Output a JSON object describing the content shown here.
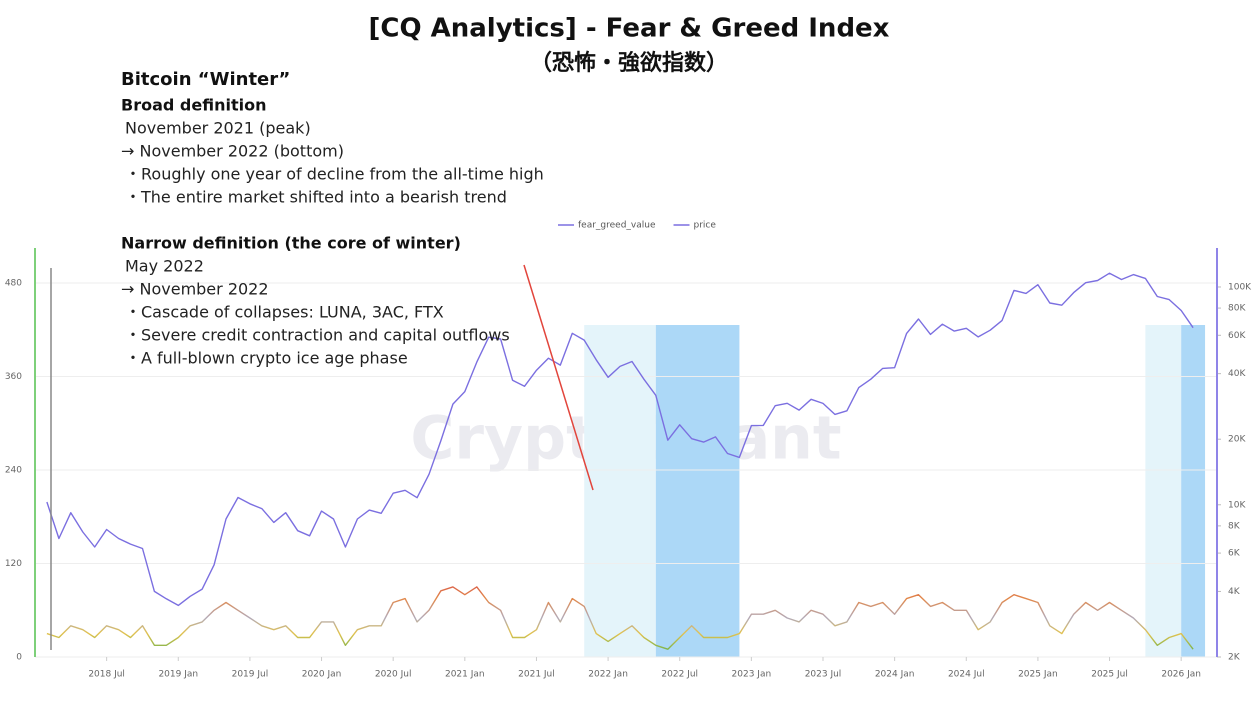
{
  "chart_data": {
    "type": "line",
    "title": "[CQ Analytics] - Fear & Greed Index",
    "subtitle": "（恐怖・強欲指数）",
    "watermark": "CryptoQuant",
    "note": {
      "title": "Bitcoin “Winter”",
      "sections": [
        {
          "heading": "Broad definition",
          "lines": [
            "November 2021 (peak)",
            "→ November 2022 (bottom)",
            "・Roughly one year of decline from the all-time high",
            "・The entire market shifted into a bearish trend"
          ]
        },
        {
          "heading": "Narrow definition (the core of winter)",
          "lines": [
            "May 2022",
            "→ November 2022",
            "・Cascade of collapses: LUNA, 3AC, FTX",
            "・Severe credit contraction and capital outflows",
            "・A full-blown crypto ice age phase"
          ]
        }
      ]
    },
    "legend_position": "top",
    "grid": true,
    "x": [
      "2018-02",
      "2018-03",
      "2018-04",
      "2018-05",
      "2018-06",
      "2018-07",
      "2018-08",
      "2018-09",
      "2018-10",
      "2018-11",
      "2018-12",
      "2019-01",
      "2019-02",
      "2019-03",
      "2019-04",
      "2019-05",
      "2019-06",
      "2019-07",
      "2019-08",
      "2019-09",
      "2019-10",
      "2019-11",
      "2019-12",
      "2020-01",
      "2020-02",
      "2020-03",
      "2020-04",
      "2020-05",
      "2020-06",
      "2020-07",
      "2020-08",
      "2020-09",
      "2020-10",
      "2020-11",
      "2020-12",
      "2021-01",
      "2021-02",
      "2021-03",
      "2021-04",
      "2021-05",
      "2021-06",
      "2021-07",
      "2021-08",
      "2021-09",
      "2021-10",
      "2021-11",
      "2021-12",
      "2022-01",
      "2022-02",
      "2022-03",
      "2022-04",
      "2022-05",
      "2022-06",
      "2022-07",
      "2022-08",
      "2022-09",
      "2022-10",
      "2022-11",
      "2022-12",
      "2023-01",
      "2023-02",
      "2023-03",
      "2023-04",
      "2023-05",
      "2023-06",
      "2023-07",
      "2023-08",
      "2023-09",
      "2023-10",
      "2023-11",
      "2023-12",
      "2024-01",
      "2024-02",
      "2024-03",
      "2024-04",
      "2024-05",
      "2024-06",
      "2024-07",
      "2024-08",
      "2024-09",
      "2024-10",
      "2024-11",
      "2024-12",
      "2025-01",
      "2025-02",
      "2025-03",
      "2025-04",
      "2025-05",
      "2025-06",
      "2025-07",
      "2025-08",
      "2025-09",
      "2025-10",
      "2025-11",
      "2025-12",
      "2026-01",
      "2026-02"
    ],
    "series": [
      {
        "name": "fear_greed_value",
        "color": "#7b6fe0",
        "axis": "y",
        "values": [
          30,
          25,
          40,
          35,
          25,
          40,
          35,
          25,
          40,
          15,
          15,
          25,
          40,
          45,
          60,
          70,
          60,
          50,
          40,
          35,
          40,
          25,
          25,
          45,
          45,
          15,
          35,
          40,
          40,
          70,
          75,
          45,
          60,
          85,
          90,
          80,
          90,
          70,
          60,
          25,
          25,
          35,
          70,
          45,
          75,
          65,
          30,
          20,
          30,
          40,
          25,
          15,
          10,
          25,
          40,
          25,
          25,
          25,
          30,
          55,
          55,
          60,
          50,
          45,
          60,
          55,
          40,
          45,
          70,
          65,
          70,
          55,
          75,
          80,
          65,
          70,
          60,
          60,
          35,
          45,
          70,
          80,
          75,
          70,
          40,
          30,
          55,
          70,
          60,
          70,
          60,
          50,
          35,
          15,
          25,
          30,
          10
        ]
      },
      {
        "name": "price",
        "color": "#7b6fe0",
        "axis": "y2",
        "values": [
          10300,
          7000,
          9200,
          7500,
          6400,
          7700,
          7000,
          6600,
          6300,
          4000,
          3700,
          3450,
          3800,
          4100,
          5300,
          8600,
          10800,
          10100,
          9600,
          8300,
          9200,
          7600,
          7200,
          9350,
          8600,
          6400,
          8600,
          9450,
          9140,
          11300,
          11650,
          10780,
          13800,
          19700,
          29000,
          33100,
          45200,
          58800,
          57700,
          37300,
          35000,
          41500,
          47100,
          43800,
          61300,
          57000,
          46300,
          38500,
          43200,
          45500,
          37700,
          31800,
          19800,
          23300,
          20100,
          19400,
          20500,
          17200,
          16500,
          23100,
          23150,
          28500,
          29250,
          27200,
          30500,
          29200,
          26000,
          27000,
          34500,
          37700,
          42300,
          42600,
          61200,
          71300,
          60600,
          67500,
          62700,
          64600,
          59000,
          63300,
          70200,
          96400,
          93400,
          102400,
          84400,
          82500,
          94200,
          104600,
          107100,
          115700,
          108200,
          114000,
          109500,
          90400,
          87500,
          78000,
          65000
        ]
      }
    ],
    "highlights": [
      {
        "start": "2021-11",
        "end": "2022-05",
        "color": "#e4f4fa"
      },
      {
        "start": "2022-05",
        "end": "2022-12",
        "color": "#acd8f7"
      },
      {
        "start": "2025-10",
        "end": "2026-01",
        "color": "#e4f4fa"
      },
      {
        "start": "2026-01",
        "end": "2026-03",
        "color": "#acd8f7"
      }
    ],
    "xlim": [
      "2018-01",
      "2026-04"
    ],
    "xticks": [
      {
        "value": "2018-07",
        "label": "2018 Jul"
      },
      {
        "value": "2019-01",
        "label": "2019 Jan"
      },
      {
        "value": "2019-07",
        "label": "2019 Jul"
      },
      {
        "value": "2020-01",
        "label": "2020 Jan"
      },
      {
        "value": "2020-07",
        "label": "2020 Jul"
      },
      {
        "value": "2021-01",
        "label": "2021 Jan"
      },
      {
        "value": "2021-07",
        "label": "2021 Jul"
      },
      {
        "value": "2022-01",
        "label": "2022 Jan"
      },
      {
        "value": "2022-07",
        "label": "2022 Jul"
      },
      {
        "value": "2023-01",
        "label": "2023 Jan"
      },
      {
        "value": "2023-07",
        "label": "2023 Jul"
      },
      {
        "value": "2024-01",
        "label": "2024 Jan"
      },
      {
        "value": "2024-07",
        "label": "2024 Jul"
      },
      {
        "value": "2025-01",
        "label": "2025 Jan"
      },
      {
        "value": "2025-07",
        "label": "2025 Jul"
      },
      {
        "value": "2026-01",
        "label": "2026 Jan"
      }
    ],
    "ylim": [
      0,
      525
    ],
    "yticks": [
      0,
      120,
      240,
      360,
      480
    ],
    "y2lim": [
      2000,
      151000
    ],
    "y2_log": true,
    "y2ticks": [
      {
        "value": 2000,
        "label": "2K"
      },
      {
        "value": 4000,
        "label": "4K"
      },
      {
        "value": 6000,
        "label": "6K"
      },
      {
        "value": 8000,
        "label": "8K"
      },
      {
        "value": 10000,
        "label": "10K"
      },
      {
        "value": 20000,
        "label": "20K"
      },
      {
        "value": 40000,
        "label": "40K"
      },
      {
        "value": 60000,
        "label": "60K"
      },
      {
        "value": 80000,
        "label": "80K"
      },
      {
        "value": 100000,
        "label": "100K"
      }
    ]
  }
}
